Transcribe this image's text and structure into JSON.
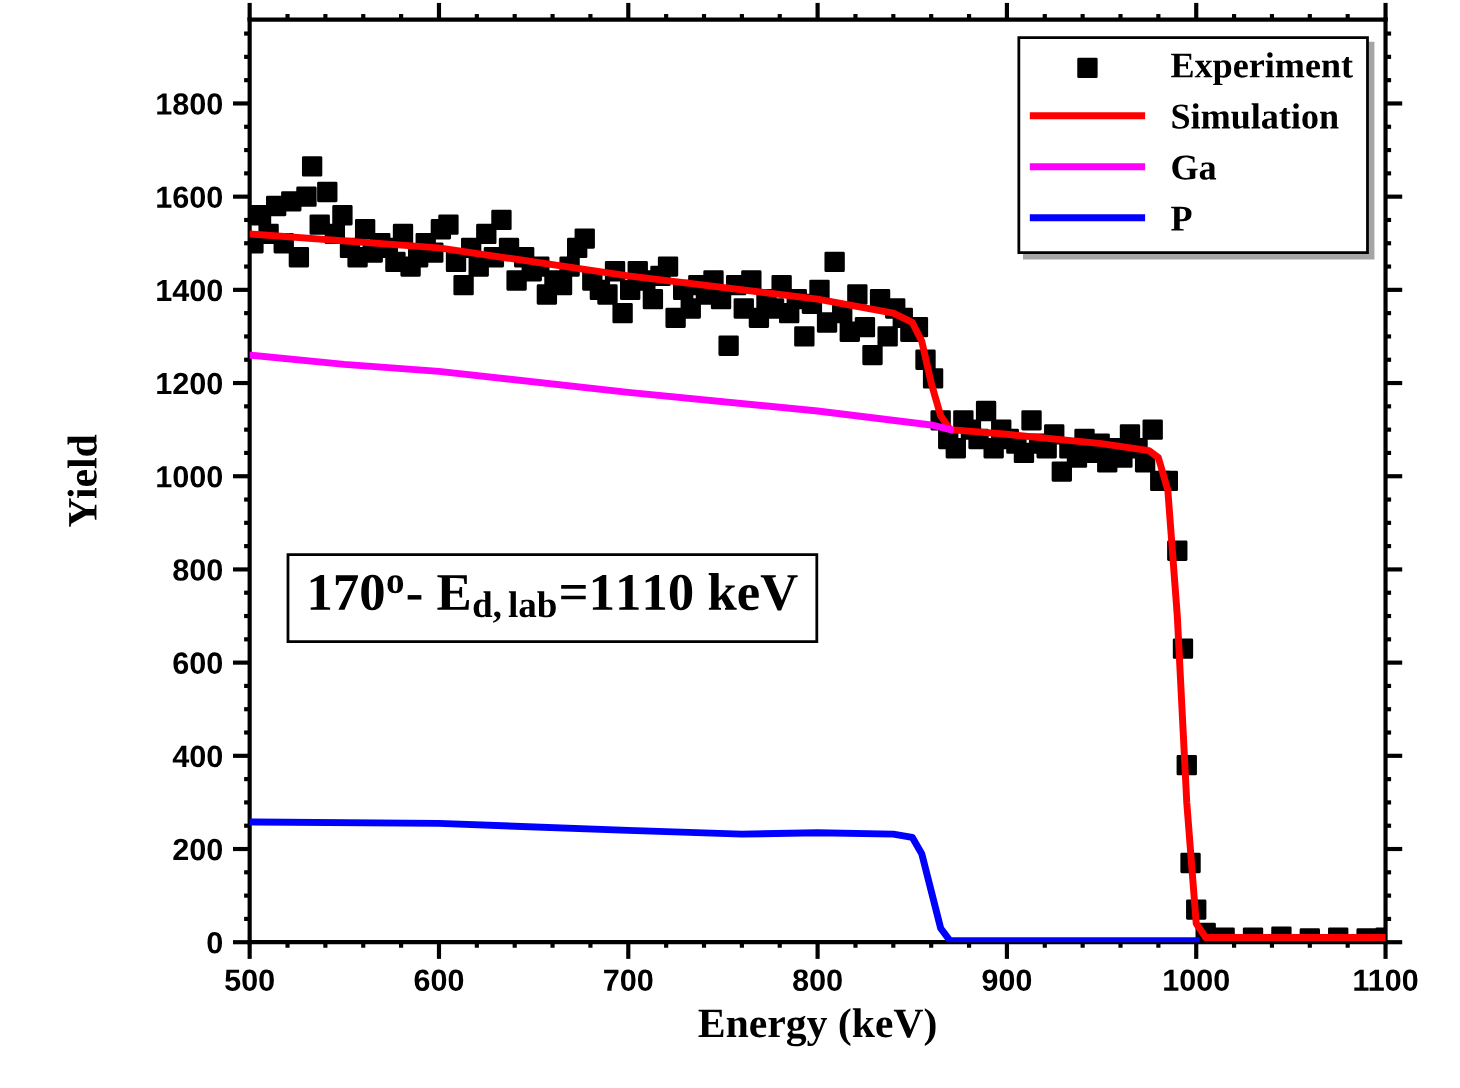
{
  "chart_data": {
    "type": "line",
    "xlabel": "Energy (keV)",
    "ylabel": "Yield",
    "xlim": [
      500,
      1100
    ],
    "xticks": [
      500,
      600,
      700,
      800,
      900,
      1000,
      1100
    ],
    "ylim": [
      0,
      1980
    ],
    "yticks": [
      0,
      200,
      400,
      600,
      800,
      1000,
      1200,
      1400,
      1600,
      1800
    ],
    "grid": false,
    "legend": "top right",
    "annotations": [
      "170$^{o}$- E$_{d,lab}$=1110 keV"
    ],
    "series": [
      {
        "name": "Experiment",
        "type": "scatter",
        "marker": "square",
        "color": "#000000",
        "x": [
          502,
          506,
          510,
          514,
          518,
          522,
          526,
          530,
          533,
          537,
          541,
          545,
          549,
          553,
          557,
          561,
          565,
          569,
          573,
          577,
          581,
          585,
          589,
          593,
          597,
          601,
          605,
          609,
          613,
          617,
          621,
          625,
          629,
          633,
          637,
          641,
          645,
          649,
          653,
          657,
          661,
          665,
          669,
          673,
          677,
          681,
          685,
          689,
          693,
          697,
          701,
          705,
          709,
          713,
          717,
          721,
          725,
          729,
          733,
          737,
          741,
          745,
          749,
          753,
          757,
          761,
          765,
          769,
          773,
          777,
          781,
          785,
          789,
          793,
          797,
          801,
          805,
          809,
          813,
          817,
          821,
          825,
          829,
          833,
          837,
          841,
          845,
          849,
          853,
          857,
          861,
          865,
          869,
          873,
          877,
          881,
          885,
          889,
          893,
          897,
          901,
          905,
          909,
          913,
          917,
          921,
          925,
          929,
          933,
          937,
          941,
          945,
          949,
          953,
          957,
          961,
          965,
          969,
          973,
          977,
          981,
          985,
          990,
          993,
          995,
          997,
          1000,
          1005,
          1015,
          1030,
          1045,
          1060,
          1075,
          1090,
          1100
        ],
        "values": [
          1500,
          1560,
          1520,
          1580,
          1500,
          1590,
          1470,
          1600,
          1665,
          1540,
          1610,
          1520,
          1560,
          1490,
          1470,
          1530,
          1480,
          1500,
          1490,
          1460,
          1520,
          1450,
          1470,
          1500,
          1480,
          1530,
          1540,
          1460,
          1410,
          1490,
          1450,
          1520,
          1470,
          1550,
          1490,
          1420,
          1470,
          1440,
          1450,
          1390,
          1420,
          1410,
          1450,
          1490,
          1510,
          1420,
          1400,
          1390,
          1440,
          1350,
          1400,
          1440,
          1420,
          1380,
          1430,
          1450,
          1340,
          1400,
          1360,
          1410,
          1390,
          1420,
          1380,
          1280,
          1410,
          1360,
          1420,
          1340,
          1380,
          1360,
          1410,
          1350,
          1380,
          1300,
          1370,
          1400,
          1330,
          1460,
          1350,
          1310,
          1390,
          1320,
          1260,
          1380,
          1300,
          1360,
          1340,
          1310,
          1320,
          1250,
          1210,
          1120,
          1080,
          1060,
          1120,
          1100,
          1080,
          1140,
          1060,
          1100,
          1080,
          1070,
          1050,
          1120,
          1070,
          1060,
          1090,
          1010,
          1060,
          1040,
          1080,
          1050,
          1070,
          1030,
          1060,
          1040,
          1090,
          1060,
          1030,
          1100,
          990,
          990,
          840,
          630,
          380,
          170,
          70,
          20,
          10,
          10,
          12,
          8,
          10,
          8,
          10
        ]
      },
      {
        "name": "Simulation",
        "color": "#ff0000",
        "x": [
          500,
          600,
          700,
          800,
          840,
          850,
          855,
          860,
          865,
          870,
          900,
          950,
          975,
          980,
          985,
          990,
          995,
          1000,
          1005,
          1100
        ],
        "values": [
          1520,
          1490,
          1430,
          1380,
          1350,
          1330,
          1290,
          1200,
          1130,
          1100,
          1090,
          1070,
          1055,
          1040,
          970,
          700,
          300,
          40,
          10,
          10
        ]
      },
      {
        "name": "Ga",
        "color": "#ff00ff",
        "x": [
          500,
          550,
          600,
          700,
          800,
          860,
          870
        ],
        "values": [
          1260,
          1240,
          1225,
          1180,
          1140,
          1110,
          1100
        ]
      },
      {
        "name": "P",
        "color": "#0000ff",
        "x": [
          500,
          600,
          700,
          760,
          800,
          840,
          850,
          855,
          860,
          865,
          870,
          1000
        ],
        "values": [
          258,
          255,
          240,
          232,
          235,
          232,
          225,
          190,
          110,
          30,
          3,
          3
        ]
      }
    ]
  }
}
